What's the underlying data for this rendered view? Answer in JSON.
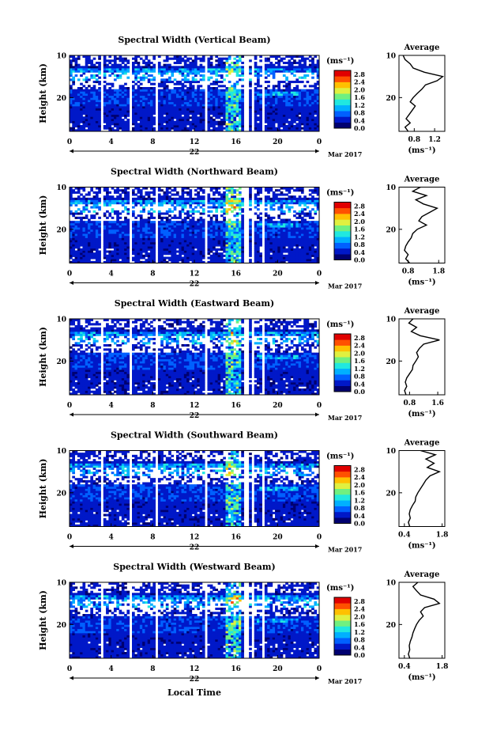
{
  "figure": {
    "date_label": "Mar 2017",
    "day_label": "22",
    "local_time_label": "Local Time",
    "height_label": "Height (km)",
    "colorbar_unit": "(ms⁻¹)",
    "average_title": "Average",
    "average_xlabel": "(ms⁻¹)",
    "x_ticks": [
      "0",
      "4",
      "8",
      "12",
      "16",
      "20",
      "0"
    ],
    "y_ticks": [
      "20",
      "10"
    ],
    "colorbar_ticks": [
      "2.8",
      "2.4",
      "2.0",
      "1.6",
      "1.2",
      "0.8",
      "0.4",
      "0.0"
    ],
    "colormap": [
      "#000070",
      "#0018c8",
      "#0060ff",
      "#00b0ff",
      "#20e8e0",
      "#70f080",
      "#e0f040",
      "#ffc000",
      "#ff5000",
      "#e00000"
    ]
  },
  "chart_data": [
    {
      "type": "heatmap",
      "title": "Spectral Width (Vertical Beam)",
      "xlabel": "",
      "ylabel": "Height (km)",
      "xlim": [
        0,
        24
      ],
      "ylim": [
        2,
        20
      ],
      "x_ticks": [
        0,
        4,
        8,
        12,
        16,
        20,
        24
      ],
      "y_ticks": [
        10,
        20
      ],
      "colorbar": {
        "range": [
          0,
          3.0
        ],
        "ticks": [
          0.0,
          0.4,
          0.8,
          1.2,
          1.6,
          2.0,
          2.4,
          2.8
        ],
        "unit": "(ms⁻¹)"
      },
      "data_gaps_hours": [
        [
          3.0,
          3.3
        ],
        [
          5.8,
          6.1
        ],
        [
          8.3,
          8.5
        ],
        [
          8.9,
          9.1
        ],
        [
          13.0,
          13.3
        ],
        [
          16.8,
          17.2
        ],
        [
          17.6,
          17.8
        ],
        [
          18.6,
          18.8
        ]
      ],
      "profile": {
        "title": "Average",
        "xlabel": "(ms⁻¹)",
        "xlim": [
          0.5,
          1.4
        ],
        "x_ticks": [
          0.8,
          1.2
        ],
        "x_tick_labels": [
          "0.8",
          "1.2"
        ],
        "heights_km": [
          2,
          3,
          4,
          5,
          6,
          7,
          8,
          9,
          10,
          11,
          12,
          13,
          14,
          15,
          16,
          17,
          18,
          19,
          20
        ],
        "values": [
          0.68,
          0.62,
          0.72,
          0.64,
          0.7,
          0.76,
          0.82,
          0.72,
          0.78,
          0.86,
          0.95,
          1.02,
          1.25,
          1.36,
          1.0,
          0.78,
          0.72,
          0.62,
          0.58
        ]
      }
    },
    {
      "type": "heatmap",
      "title": "Spectral Width (Northward Beam)",
      "xlabel": "",
      "ylabel": "Height (km)",
      "xlim": [
        0,
        24
      ],
      "ylim": [
        2,
        20
      ],
      "x_ticks": [
        0,
        4,
        8,
        12,
        16,
        20,
        24
      ],
      "y_ticks": [
        10,
        20
      ],
      "colorbar": {
        "range": [
          0,
          3.0
        ],
        "ticks": [
          0.0,
          0.4,
          0.8,
          1.2,
          1.6,
          2.0,
          2.4,
          2.8
        ],
        "unit": "(ms⁻¹)"
      },
      "data_gaps_hours": [
        [
          3.0,
          3.3
        ],
        [
          5.8,
          6.1
        ],
        [
          8.3,
          8.5
        ],
        [
          8.9,
          9.1
        ],
        [
          13.0,
          13.3
        ],
        [
          16.8,
          17.2
        ],
        [
          17.6,
          17.8
        ],
        [
          18.6,
          18.8
        ]
      ],
      "profile": {
        "title": "Average",
        "xlabel": "(ms⁻¹)",
        "xlim": [
          0.5,
          2.0
        ],
        "x_ticks": [
          0.8,
          1.8
        ],
        "x_tick_labels": [
          "0.8",
          "1.8"
        ],
        "heights_km": [
          2,
          3,
          4,
          5,
          6,
          7,
          8,
          9,
          10,
          11,
          12,
          13,
          14,
          15,
          16,
          17,
          18,
          19,
          20
        ],
        "values": [
          0.85,
          0.72,
          0.8,
          0.68,
          0.72,
          0.8,
          0.9,
          0.95,
          1.1,
          1.4,
          1.15,
          1.25,
          1.5,
          1.75,
          1.3,
          1.05,
          1.4,
          0.95,
          1.2
        ]
      }
    },
    {
      "type": "heatmap",
      "title": "Spectral Width (Eastward Beam)",
      "xlabel": "",
      "ylabel": "Height (km)",
      "xlim": [
        0,
        24
      ],
      "ylim": [
        2,
        20
      ],
      "x_ticks": [
        0,
        4,
        8,
        12,
        16,
        20,
        24
      ],
      "y_ticks": [
        10,
        20
      ],
      "colorbar": {
        "range": [
          0,
          3.0
        ],
        "ticks": [
          0.0,
          0.4,
          0.8,
          1.2,
          1.6,
          2.0,
          2.4,
          2.8
        ],
        "unit": "(ms⁻¹)"
      },
      "data_gaps_hours": [
        [
          3.0,
          3.3
        ],
        [
          5.8,
          6.1
        ],
        [
          8.3,
          8.5
        ],
        [
          8.9,
          9.1
        ],
        [
          13.0,
          13.3
        ],
        [
          16.8,
          17.2
        ],
        [
          17.6,
          17.8
        ],
        [
          18.6,
          18.8
        ]
      ],
      "profile": {
        "title": "Average",
        "xlabel": "(ms⁻¹)",
        "xlim": [
          0.5,
          1.8
        ],
        "x_ticks": [
          0.8,
          1.6
        ],
        "x_tick_labels": [
          "0.8",
          "1.6"
        ],
        "heights_km": [
          2,
          3,
          4,
          5,
          6,
          7,
          8,
          9,
          10,
          11,
          12,
          13,
          14,
          15,
          16,
          17,
          18,
          19,
          20
        ],
        "values": [
          0.7,
          0.66,
          0.72,
          0.68,
          0.72,
          0.8,
          0.88,
          0.9,
          0.98,
          1.05,
          1.0,
          1.08,
          1.2,
          1.65,
          1.1,
          0.85,
          1.0,
          0.78,
          0.9
        ]
      }
    },
    {
      "type": "heatmap",
      "title": "Spectral Width (Southward Beam)",
      "xlabel": "",
      "ylabel": "Height (km)",
      "xlim": [
        0,
        24
      ],
      "ylim": [
        2,
        20
      ],
      "x_ticks": [
        0,
        4,
        8,
        12,
        16,
        20,
        24
      ],
      "y_ticks": [
        10,
        20
      ],
      "colorbar": {
        "range": [
          0,
          3.0
        ],
        "ticks": [
          0.0,
          0.4,
          0.8,
          1.2,
          1.6,
          2.0,
          2.4,
          2.8
        ],
        "unit": "(ms⁻¹)"
      },
      "data_gaps_hours": [
        [
          3.0,
          3.3
        ],
        [
          5.8,
          6.1
        ],
        [
          8.3,
          8.5
        ],
        [
          8.9,
          9.1
        ],
        [
          13.0,
          13.3
        ],
        [
          16.8,
          17.2
        ],
        [
          17.6,
          17.8
        ],
        [
          18.6,
          18.8
        ]
      ],
      "profile": {
        "title": "Average",
        "xlabel": "(ms⁻¹)",
        "xlim": [
          0.2,
          1.9
        ],
        "x_ticks": [
          0.4,
          1.8
        ],
        "x_tick_labels": [
          "0.4",
          "1.8"
        ],
        "heights_km": [
          2,
          3,
          4,
          5,
          6,
          7,
          8,
          9,
          10,
          11,
          12,
          13,
          14,
          15,
          16,
          17,
          18,
          19,
          20
        ],
        "values": [
          0.6,
          0.55,
          0.62,
          0.58,
          0.62,
          0.7,
          0.8,
          0.82,
          0.9,
          1.0,
          1.1,
          1.2,
          1.35,
          1.7,
          1.25,
          1.5,
          1.2,
          1.55,
          1.0
        ]
      }
    },
    {
      "type": "heatmap",
      "title": "Spectral Width (Westward Beam)",
      "xlabel": "Local Time",
      "ylabel": "Height (km)",
      "xlim": [
        0,
        24
      ],
      "ylim": [
        2,
        20
      ],
      "x_ticks": [
        0,
        4,
        8,
        12,
        16,
        20,
        24
      ],
      "y_ticks": [
        10,
        20
      ],
      "colorbar": {
        "range": [
          0,
          3.0
        ],
        "ticks": [
          0.0,
          0.4,
          0.8,
          1.2,
          1.6,
          2.0,
          2.4,
          2.8
        ],
        "unit": "(ms⁻¹)"
      },
      "data_gaps_hours": [
        [
          3.0,
          3.3
        ],
        [
          5.8,
          6.1
        ],
        [
          8.3,
          8.5
        ],
        [
          8.9,
          9.1
        ],
        [
          13.0,
          13.3
        ],
        [
          16.8,
          17.2
        ],
        [
          17.6,
          17.8
        ],
        [
          18.6,
          18.8
        ]
      ],
      "profile": {
        "title": "Average",
        "xlabel": "(ms⁻¹)",
        "xlim": [
          0.2,
          1.9
        ],
        "x_ticks": [
          0.4,
          1.8
        ],
        "x_tick_labels": [
          "0.4",
          "1.8"
        ],
        "heights_km": [
          2,
          3,
          4,
          5,
          6,
          7,
          8,
          9,
          10,
          11,
          12,
          13,
          14,
          15,
          16,
          17,
          18,
          19,
          20
        ],
        "values": [
          0.6,
          0.55,
          0.6,
          0.58,
          0.62,
          0.68,
          0.72,
          0.78,
          0.85,
          0.95,
          1.1,
          1.0,
          1.15,
          1.7,
          1.5,
          1.0,
          0.85,
          0.72,
          0.9
        ]
      }
    }
  ]
}
